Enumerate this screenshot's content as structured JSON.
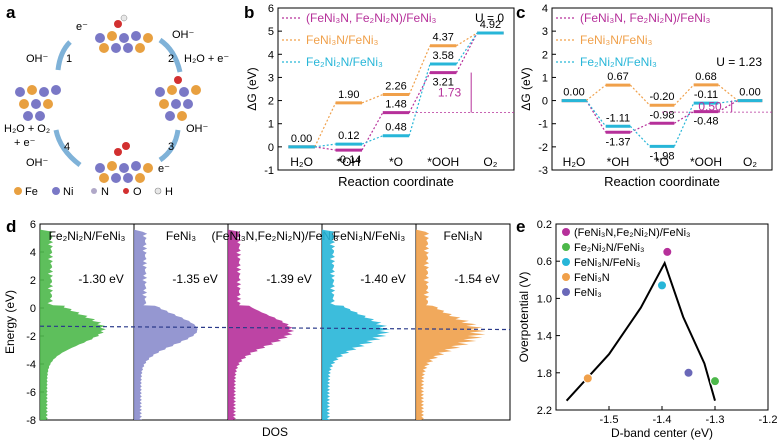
{
  "panel_labels": [
    "a",
    "b",
    "c",
    "d",
    "e"
  ],
  "panel_a": {
    "steps": [
      "1",
      "2",
      "3",
      "4"
    ],
    "reactants": {
      "s1": "OH⁻",
      "s1e": "e⁻",
      "s2": "OH⁻",
      "s2p": "H₂O + e⁻",
      "s3": "OH⁻",
      "s3e": "e⁻",
      "s4a": "H₂O + O₂",
      "s4b": "+ e⁻",
      "s4c": "OH⁻"
    },
    "legend": [
      "Fe",
      "Ni",
      "N",
      "O",
      "H"
    ],
    "colors": {
      "Fe": "#e8a040",
      "Ni": "#7a78c6",
      "N": "#b0a8c8",
      "O": "#d23030",
      "H": "#e8e8e8"
    }
  },
  "chart_data": [
    {
      "panel": "b",
      "type": "line",
      "title": "",
      "xlabel": "Reaction coordinate",
      "ylabel": "ΔG (eV)",
      "categories": [
        "H₂O",
        "*OH",
        "*O",
        "*OOH",
        "O₂"
      ],
      "ylim": [
        -1,
        6
      ],
      "yticks": [
        -1,
        0,
        1,
        2,
        3,
        4,
        5,
        6
      ],
      "annotation": "U = 0",
      "overpotential_label": "1.73",
      "series": [
        {
          "name": "(FeNi₃N, Fe₂Ni₂N)/FeNi₃",
          "color": "#b6309a",
          "values": [
            0.0,
            -0.14,
            1.48,
            3.21,
            4.92
          ]
        },
        {
          "name": "FeNi₃N/FeNi₃",
          "color": "#f0a04a",
          "values": [
            0.0,
            1.9,
            2.26,
            4.37,
            4.92
          ]
        },
        {
          "name": "Fe₂Ni₂N/FeNi₃",
          "color": "#27b6d8",
          "values": [
            0.0,
            0.12,
            0.48,
            3.58,
            4.92
          ]
        }
      ],
      "value_labels": [
        "0.00",
        "1.90",
        "0.12",
        "-0.14",
        "2.26",
        "1.48",
        "0.48",
        "4.37",
        "3.58",
        "3.21",
        "4.92"
      ]
    },
    {
      "panel": "c",
      "type": "line",
      "title": "",
      "xlabel": "Reaction coordinate",
      "ylabel": "ΔG (eV)",
      "categories": [
        "H₂O",
        "*OH",
        "*O",
        "*OOH",
        "O₂"
      ],
      "ylim": [
        -3,
        4
      ],
      "yticks": [
        -3,
        -2,
        -1,
        0,
        1,
        2,
        3,
        4
      ],
      "annotation": "U = 1.23",
      "overpotential_label": "0.50",
      "series": [
        {
          "name": "(FeNi₃N, Fe₂Ni₂N)/FeNi₃",
          "color": "#b6309a",
          "values": [
            0.0,
            -1.37,
            -0.98,
            -0.48,
            0.0
          ]
        },
        {
          "name": "FeNi₃N/FeNi₃",
          "color": "#f0a04a",
          "values": [
            0.0,
            0.67,
            -0.2,
            0.68,
            0.0
          ]
        },
        {
          "name": "Fe₂Ni₂N/FeNi₃",
          "color": "#27b6d8",
          "values": [
            0.0,
            -1.11,
            -1.98,
            -0.11,
            0.0
          ]
        }
      ],
      "value_labels": [
        "0.00",
        "0.67",
        "-1.11",
        "-1.37",
        "-0.20",
        "-0.98",
        "-1.98",
        "0.68",
        "-0.11",
        "-0.48",
        "0.00"
      ]
    },
    {
      "panel": "d",
      "type": "area",
      "xlabel": "DOS",
      "ylabel": "Energy (eV)",
      "ylim": [
        -8,
        6
      ],
      "yticks": [
        -8,
        -6,
        -4,
        -2,
        0,
        2,
        4,
        6
      ],
      "series": [
        {
          "name": "Fe₂Ni₂N/FeNi₃",
          "color": "#4cb84a",
          "d_band_center": -1.3,
          "label": "-1.30 eV"
        },
        {
          "name": "FeNi₃",
          "color": "#8a8ccc",
          "d_band_center": -1.35,
          "label": "-1.35 eV"
        },
        {
          "name": "(FeNi₃N,Fe₂Ni₂N)/FeNi₃",
          "color": "#b6309a",
          "d_band_center": -1.39,
          "label": "-1.39 eV"
        },
        {
          "name": "FeNi₃N/FeNi₃",
          "color": "#27b6d8",
          "d_band_center": -1.4,
          "label": "-1.40 eV"
        },
        {
          "name": "FeNi₃N",
          "color": "#f0a04a",
          "d_band_center": -1.54,
          "label": "-1.54 eV"
        }
      ]
    },
    {
      "panel": "e",
      "type": "scatter",
      "xlabel": "D-band center (eV)",
      "ylabel": "Overpotential (V)",
      "xlim": [
        -1.6,
        -1.2
      ],
      "xticks": [
        -1.6,
        -1.5,
        -1.4,
        -1.3,
        -1.2
      ],
      "xtick_labels": [
        "",
        "-1.5",
        "-1.4",
        "-1.3",
        "-1.2"
      ],
      "ylim": [
        2.2,
        0.2
      ],
      "yticks": [
        0.2,
        0.6,
        1.0,
        1.4,
        1.8,
        2.2
      ],
      "ytick_labels": [
        "0.2",
        "0.6",
        "1.0",
        "1.4",
        "1.8",
        "2.2"
      ],
      "points": [
        {
          "name": "(FeNi₃N,Fe₂Ni₂N)/FeNi₃",
          "color": "#b6309a",
          "x": -1.39,
          "y": 0.5
        },
        {
          "name": "Fe₂Ni₂N/FeNi₃",
          "color": "#4cb84a",
          "x": -1.3,
          "y": 1.89
        },
        {
          "name": "FeNi₃N/FeNi₃",
          "color": "#27b6d8",
          "x": -1.4,
          "y": 0.86
        },
        {
          "name": "FeNi₃N",
          "color": "#f0a04a",
          "x": -1.54,
          "y": 1.86
        },
        {
          "name": "FeNi₃",
          "color": "#6a68b8",
          "x": -1.35,
          "y": 1.8
        }
      ],
      "curve_left": [
        [
          -1.58,
          2.1
        ],
        [
          -1.5,
          1.6
        ],
        [
          -1.44,
          1.1
        ],
        [
          -1.395,
          0.62
        ]
      ],
      "curve_right": [
        [
          -1.395,
          0.62
        ],
        [
          -1.36,
          1.2
        ],
        [
          -1.32,
          1.7
        ],
        [
          -1.3,
          2.1
        ]
      ]
    }
  ]
}
